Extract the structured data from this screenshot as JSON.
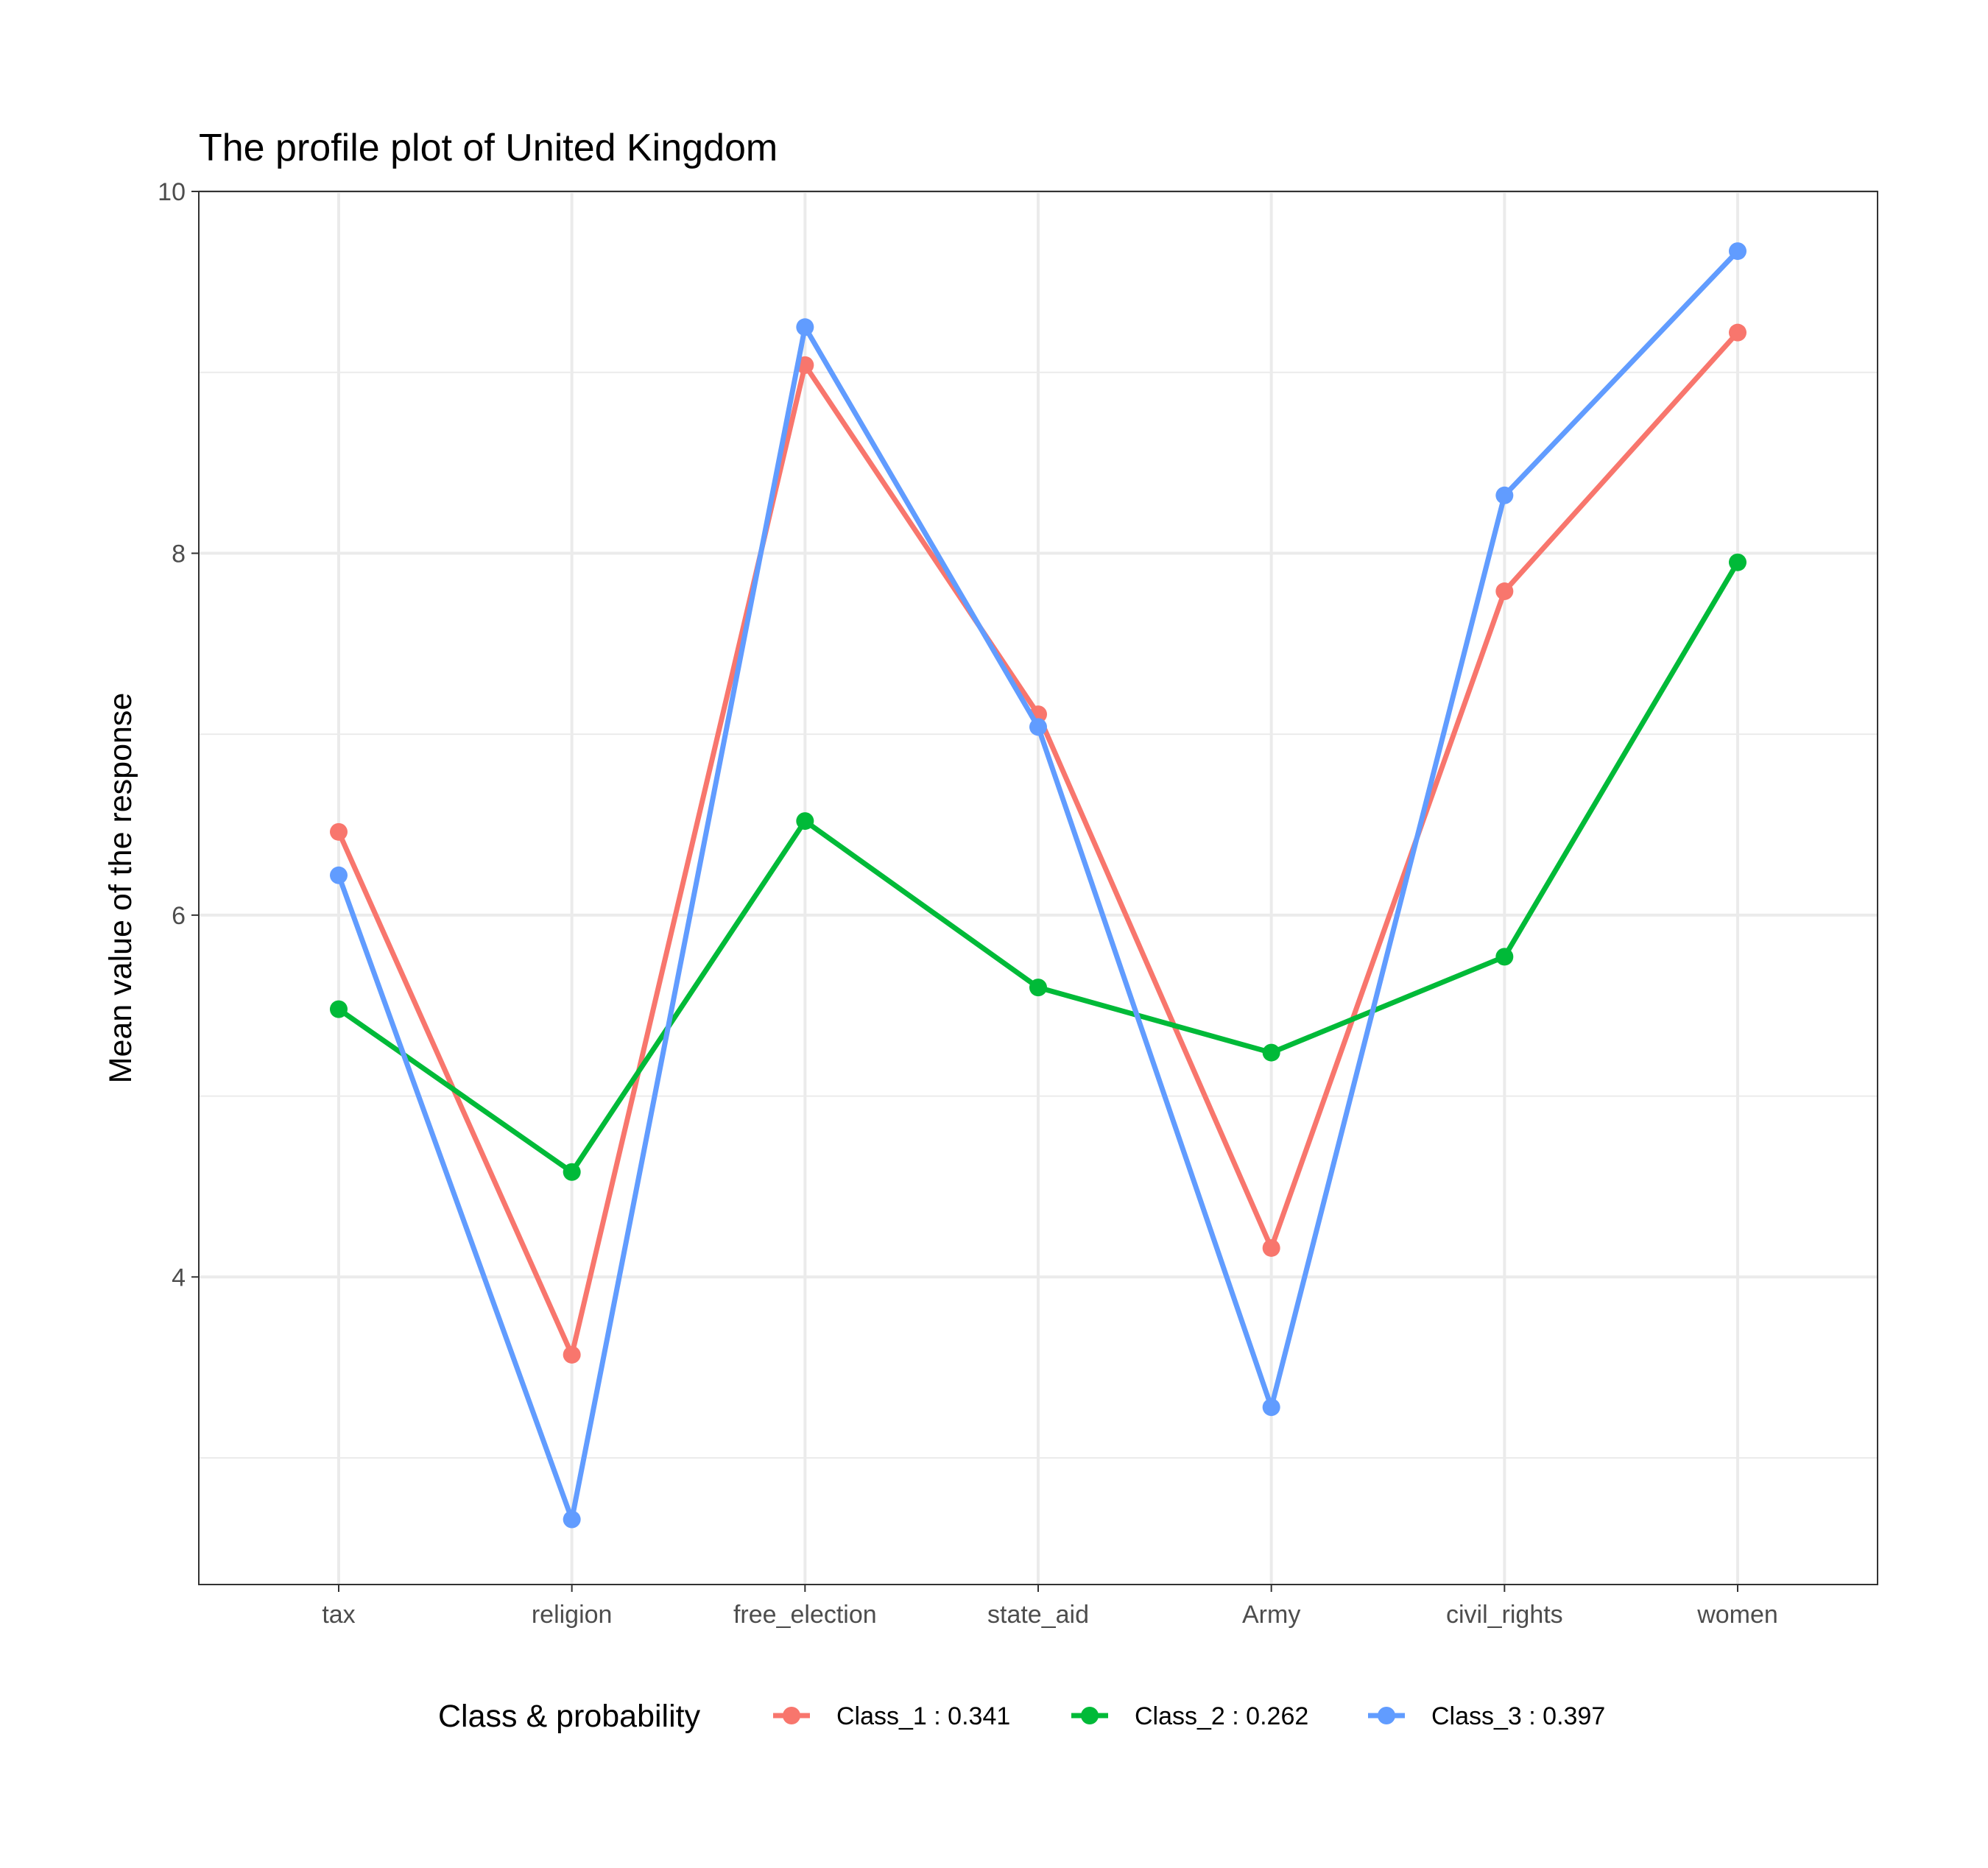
{
  "chart_data": {
    "type": "line",
    "title": "The profile plot of United Kingdom",
    "xlabel": "",
    "ylabel": "Mean value of the response",
    "categories": [
      "tax",
      "religion",
      "free_election",
      "state_aid",
      "Army",
      "civil_rights",
      "women"
    ],
    "y_ticks": [
      "4",
      "6",
      "8",
      "10"
    ],
    "ylim": [
      2.3,
      10
    ],
    "grid": true,
    "legend": {
      "title": "Class & probability",
      "position": "bottom"
    },
    "series": [
      {
        "name": "Class_1 : 0.341",
        "color": "#F8766D",
        "values": [
          6.46,
          3.57,
          9.04,
          7.11,
          4.16,
          7.79,
          9.22
        ]
      },
      {
        "name": "Class_2 : 0.262",
        "color": "#00BA38",
        "values": [
          5.48,
          4.58,
          6.52,
          5.6,
          5.24,
          5.77,
          7.95
        ]
      },
      {
        "name": "Class_3 : 0.397",
        "color": "#619CFF",
        "values": [
          6.22,
          2.66,
          9.25,
          7.04,
          3.28,
          8.32,
          9.67
        ]
      }
    ]
  }
}
